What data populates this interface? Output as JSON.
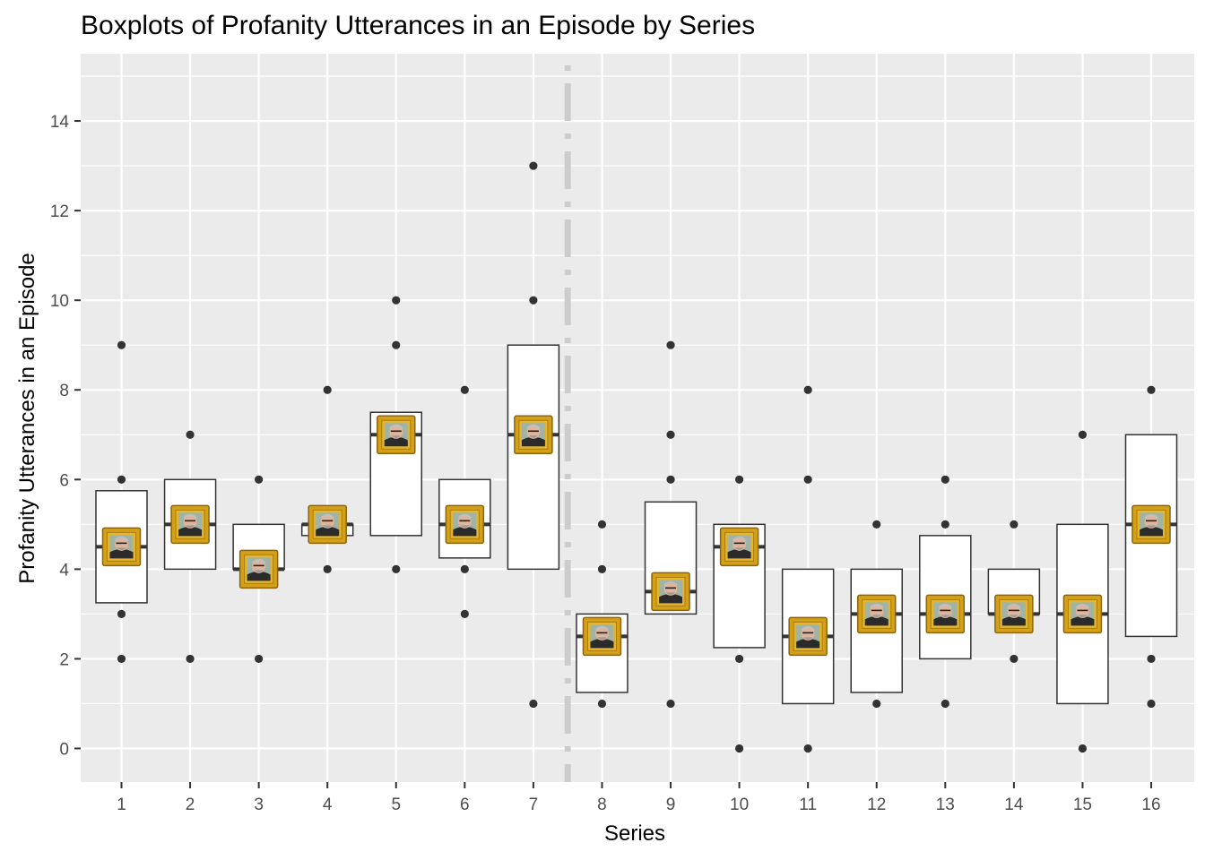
{
  "chart_data": {
    "type": "boxplot",
    "title": "Boxplots of Profanity Utterances in an Episode by Series",
    "xlabel": "Series",
    "ylabel": "Profanity Utterances in an Episode",
    "categories": [
      "1",
      "2",
      "3",
      "4",
      "5",
      "6",
      "7",
      "8",
      "9",
      "10",
      "11",
      "12",
      "13",
      "14",
      "15",
      "16"
    ],
    "yticks": [
      0,
      2,
      4,
      6,
      8,
      10,
      12,
      14
    ],
    "ylim": [
      -0.75,
      15.5
    ],
    "grid": true,
    "divider_after_category": "7",
    "boxes": [
      {
        "series": "1",
        "q1": 3.25,
        "median": 4.5,
        "q3": 5.75,
        "outliers": [
          9,
          6,
          3,
          2
        ]
      },
      {
        "series": "2",
        "q1": 4,
        "median": 5,
        "q3": 6,
        "outliers": [
          7,
          2
        ]
      },
      {
        "series": "3",
        "q1": 4,
        "median": 4,
        "q3": 5,
        "outliers": [
          6,
          2
        ]
      },
      {
        "series": "4",
        "q1": 4.75,
        "median": 5,
        "q3": 5,
        "outliers": [
          8,
          4
        ]
      },
      {
        "series": "5",
        "q1": 4.75,
        "median": 7,
        "q3": 7.5,
        "outliers": [
          10,
          9,
          4
        ]
      },
      {
        "series": "6",
        "q1": 4.25,
        "median": 5,
        "q3": 6,
        "outliers": [
          8,
          4,
          3
        ]
      },
      {
        "series": "7",
        "q1": 4,
        "median": 7,
        "q3": 9,
        "outliers": [
          13,
          10,
          1
        ]
      },
      {
        "series": "8",
        "q1": 1.25,
        "median": 2.5,
        "q3": 3,
        "outliers": [
          5,
          4,
          1
        ]
      },
      {
        "series": "9",
        "q1": 3,
        "median": 3.5,
        "q3": 5.5,
        "outliers": [
          9,
          7,
          6,
          1
        ]
      },
      {
        "series": "10",
        "q1": 2.25,
        "median": 4.5,
        "q3": 5,
        "outliers": [
          6,
          2,
          0
        ]
      },
      {
        "series": "11",
        "q1": 1,
        "median": 2.5,
        "q3": 4,
        "outliers": [
          8,
          6,
          0
        ]
      },
      {
        "series": "12",
        "q1": 1.25,
        "median": 3,
        "q3": 4,
        "outliers": [
          5,
          1
        ]
      },
      {
        "series": "13",
        "q1": 2,
        "median": 3,
        "q3": 4.75,
        "outliers": [
          6,
          5,
          1
        ]
      },
      {
        "series": "14",
        "q1": 3,
        "median": 3,
        "q3": 4,
        "outliers": [
          5,
          2
        ]
      },
      {
        "series": "15",
        "q1": 1,
        "median": 3,
        "q3": 5,
        "outliers": [
          7,
          0
        ]
      },
      {
        "series": "16",
        "q1": 2.5,
        "median": 5,
        "q3": 7,
        "outliers": [
          8,
          2,
          1
        ]
      }
    ],
    "median_marker_icon": "framed-portrait-icon",
    "colors": {
      "panel": "#ebebeb",
      "grid": "#ffffff",
      "box_fill": "#ffffff",
      "box_stroke": "#333333",
      "point": "#333333",
      "divider": "#cccccc",
      "frame_gold": "#d4a017"
    }
  }
}
